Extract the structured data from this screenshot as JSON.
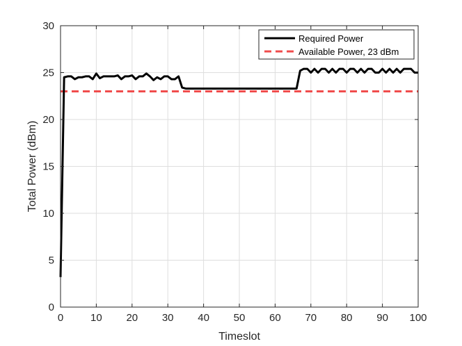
{
  "chart_data": {
    "type": "line",
    "xlabel": "Timeslot",
    "ylabel": "Total Power (dBm)",
    "xlim": [
      0,
      100
    ],
    "ylim": [
      0,
      30
    ],
    "xticks": [
      0,
      10,
      20,
      30,
      40,
      50,
      60,
      70,
      80,
      90,
      100
    ],
    "yticks": [
      0,
      5,
      10,
      15,
      20,
      25,
      30
    ],
    "xtick_labels": [
      "0",
      "10",
      "20",
      "30",
      "40",
      "50",
      "60",
      "70",
      "80",
      "90",
      "100"
    ],
    "ytick_labels": [
      "0",
      "5",
      "10",
      "15",
      "20",
      "25",
      "30"
    ],
    "grid": true,
    "legend_position": "top-right",
    "series": [
      {
        "name": "Required Power",
        "color": "#000000",
        "style": "solid",
        "x": [
          0,
          1,
          2,
          3,
          4,
          5,
          6,
          7,
          8,
          9,
          10,
          11,
          12,
          13,
          14,
          15,
          16,
          17,
          18,
          19,
          20,
          21,
          22,
          23,
          24,
          25,
          26,
          27,
          28,
          29,
          30,
          31,
          32,
          33,
          34,
          35,
          36,
          37,
          38,
          39,
          40,
          41,
          42,
          43,
          44,
          45,
          46,
          47,
          48,
          49,
          50,
          51,
          52,
          53,
          54,
          55,
          56,
          57,
          58,
          59,
          60,
          61,
          62,
          63,
          64,
          65,
          66,
          67,
          68,
          69,
          70,
          71,
          72,
          73,
          74,
          75,
          76,
          77,
          78,
          79,
          80,
          81,
          82,
          83,
          84,
          85,
          86,
          87,
          88,
          89,
          90,
          91,
          92,
          93,
          94,
          95,
          96,
          97,
          98,
          99,
          100
        ],
        "y": [
          3.2,
          24.5,
          24.6,
          24.6,
          24.3,
          24.5,
          24.5,
          24.6,
          24.6,
          24.3,
          24.9,
          24.4,
          24.6,
          24.6,
          24.6,
          24.6,
          24.7,
          24.3,
          24.6,
          24.6,
          24.7,
          24.3,
          24.6,
          24.6,
          24.9,
          24.6,
          24.2,
          24.5,
          24.3,
          24.6,
          24.6,
          24.3,
          24.3,
          24.6,
          23.4,
          23.3,
          23.3,
          23.3,
          23.3,
          23.3,
          23.3,
          23.3,
          23.3,
          23.3,
          23.3,
          23.3,
          23.3,
          23.3,
          23.3,
          23.3,
          23.3,
          23.3,
          23.3,
          23.3,
          23.3,
          23.3,
          23.3,
          23.3,
          23.3,
          23.3,
          23.3,
          23.3,
          23.3,
          23.3,
          23.3,
          23.3,
          23.3,
          25.2,
          25.4,
          25.4,
          25.0,
          25.4,
          25.0,
          25.4,
          25.4,
          25.0,
          25.4,
          25.0,
          25.4,
          25.4,
          25.0,
          25.4,
          25.4,
          25.0,
          25.4,
          25.0,
          25.4,
          25.4,
          25.0,
          25.0,
          25.4,
          25.0,
          25.4,
          25.0,
          25.4,
          25.0,
          25.4,
          25.4,
          25.4,
          25.0,
          25.0
        ]
      },
      {
        "name": "Available Power, 23 dBm",
        "color": "#f04c4c",
        "style": "dashed",
        "x": [
          0,
          100
        ],
        "y": [
          23,
          23
        ]
      }
    ]
  }
}
